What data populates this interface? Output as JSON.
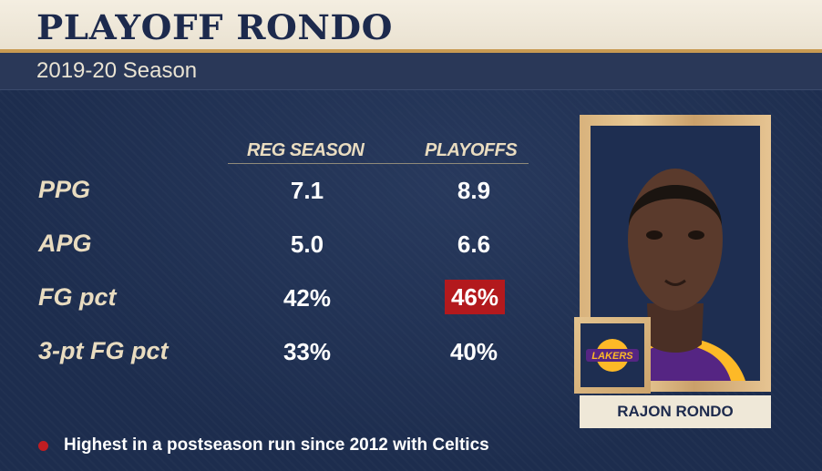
{
  "header": {
    "title": "PLAYOFF RONDO",
    "subtitle": "2019-20 Season"
  },
  "table": {
    "columns": [
      "REG SEASON",
      "PLAYOFFS"
    ],
    "rows": [
      {
        "label": "PPG",
        "reg": "7.1",
        "playoffs": "8.9",
        "highlight": false
      },
      {
        "label": "APG",
        "reg": "5.0",
        "playoffs": "6.6",
        "highlight": false
      },
      {
        "label": "FG pct",
        "reg": "42%",
        "playoffs": "46%",
        "highlight": true
      },
      {
        "label": "3-pt FG pct",
        "reg": "33%",
        "playoffs": "40%",
        "highlight": false
      }
    ]
  },
  "player": {
    "name": "RAJON RONDO",
    "team_logo_text": "LAKERS"
  },
  "footnote": {
    "text": "Highest in a postseason run since 2012 with Celtics"
  },
  "colors": {
    "background": "#1d2d4e",
    "title_bar": "#f4eee1",
    "accent_gold": "#c89a52",
    "highlight_red": "#b3191d",
    "text_cream": "#e9dcc0"
  }
}
